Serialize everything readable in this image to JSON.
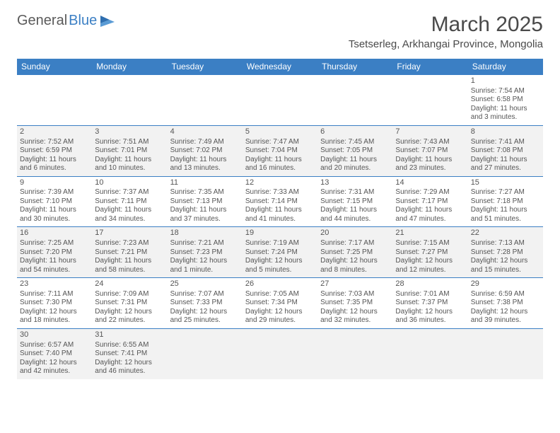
{
  "logo": {
    "text1": "General",
    "text2": "Blue"
  },
  "title": "March 2025",
  "location": "Tsetserleg, Arkhangai Province, Mongolia",
  "colors": {
    "header_bg": "#3b7fc4",
    "header_text": "#ffffff",
    "row_alt_bg": "#f2f2f2",
    "border": "#3b7fc4",
    "text": "#555555"
  },
  "day_headers": [
    "Sunday",
    "Monday",
    "Tuesday",
    "Wednesday",
    "Thursday",
    "Friday",
    "Saturday"
  ],
  "weeks": [
    [
      null,
      null,
      null,
      null,
      null,
      null,
      {
        "n": "1",
        "sunrise": "Sunrise: 7:54 AM",
        "sunset": "Sunset: 6:58 PM",
        "daylight": "Daylight: 11 hours and 3 minutes."
      }
    ],
    [
      {
        "n": "2",
        "sunrise": "Sunrise: 7:52 AM",
        "sunset": "Sunset: 6:59 PM",
        "daylight": "Daylight: 11 hours and 6 minutes."
      },
      {
        "n": "3",
        "sunrise": "Sunrise: 7:51 AM",
        "sunset": "Sunset: 7:01 PM",
        "daylight": "Daylight: 11 hours and 10 minutes."
      },
      {
        "n": "4",
        "sunrise": "Sunrise: 7:49 AM",
        "sunset": "Sunset: 7:02 PM",
        "daylight": "Daylight: 11 hours and 13 minutes."
      },
      {
        "n": "5",
        "sunrise": "Sunrise: 7:47 AM",
        "sunset": "Sunset: 7:04 PM",
        "daylight": "Daylight: 11 hours and 16 minutes."
      },
      {
        "n": "6",
        "sunrise": "Sunrise: 7:45 AM",
        "sunset": "Sunset: 7:05 PM",
        "daylight": "Daylight: 11 hours and 20 minutes."
      },
      {
        "n": "7",
        "sunrise": "Sunrise: 7:43 AM",
        "sunset": "Sunset: 7:07 PM",
        "daylight": "Daylight: 11 hours and 23 minutes."
      },
      {
        "n": "8",
        "sunrise": "Sunrise: 7:41 AM",
        "sunset": "Sunset: 7:08 PM",
        "daylight": "Daylight: 11 hours and 27 minutes."
      }
    ],
    [
      {
        "n": "9",
        "sunrise": "Sunrise: 7:39 AM",
        "sunset": "Sunset: 7:10 PM",
        "daylight": "Daylight: 11 hours and 30 minutes."
      },
      {
        "n": "10",
        "sunrise": "Sunrise: 7:37 AM",
        "sunset": "Sunset: 7:11 PM",
        "daylight": "Daylight: 11 hours and 34 minutes."
      },
      {
        "n": "11",
        "sunrise": "Sunrise: 7:35 AM",
        "sunset": "Sunset: 7:13 PM",
        "daylight": "Daylight: 11 hours and 37 minutes."
      },
      {
        "n": "12",
        "sunrise": "Sunrise: 7:33 AM",
        "sunset": "Sunset: 7:14 PM",
        "daylight": "Daylight: 11 hours and 41 minutes."
      },
      {
        "n": "13",
        "sunrise": "Sunrise: 7:31 AM",
        "sunset": "Sunset: 7:15 PM",
        "daylight": "Daylight: 11 hours and 44 minutes."
      },
      {
        "n": "14",
        "sunrise": "Sunrise: 7:29 AM",
        "sunset": "Sunset: 7:17 PM",
        "daylight": "Daylight: 11 hours and 47 minutes."
      },
      {
        "n": "15",
        "sunrise": "Sunrise: 7:27 AM",
        "sunset": "Sunset: 7:18 PM",
        "daylight": "Daylight: 11 hours and 51 minutes."
      }
    ],
    [
      {
        "n": "16",
        "sunrise": "Sunrise: 7:25 AM",
        "sunset": "Sunset: 7:20 PM",
        "daylight": "Daylight: 11 hours and 54 minutes."
      },
      {
        "n": "17",
        "sunrise": "Sunrise: 7:23 AM",
        "sunset": "Sunset: 7:21 PM",
        "daylight": "Daylight: 11 hours and 58 minutes."
      },
      {
        "n": "18",
        "sunrise": "Sunrise: 7:21 AM",
        "sunset": "Sunset: 7:23 PM",
        "daylight": "Daylight: 12 hours and 1 minute."
      },
      {
        "n": "19",
        "sunrise": "Sunrise: 7:19 AM",
        "sunset": "Sunset: 7:24 PM",
        "daylight": "Daylight: 12 hours and 5 minutes."
      },
      {
        "n": "20",
        "sunrise": "Sunrise: 7:17 AM",
        "sunset": "Sunset: 7:25 PM",
        "daylight": "Daylight: 12 hours and 8 minutes."
      },
      {
        "n": "21",
        "sunrise": "Sunrise: 7:15 AM",
        "sunset": "Sunset: 7:27 PM",
        "daylight": "Daylight: 12 hours and 12 minutes."
      },
      {
        "n": "22",
        "sunrise": "Sunrise: 7:13 AM",
        "sunset": "Sunset: 7:28 PM",
        "daylight": "Daylight: 12 hours and 15 minutes."
      }
    ],
    [
      {
        "n": "23",
        "sunrise": "Sunrise: 7:11 AM",
        "sunset": "Sunset: 7:30 PM",
        "daylight": "Daylight: 12 hours and 18 minutes."
      },
      {
        "n": "24",
        "sunrise": "Sunrise: 7:09 AM",
        "sunset": "Sunset: 7:31 PM",
        "daylight": "Daylight: 12 hours and 22 minutes."
      },
      {
        "n": "25",
        "sunrise": "Sunrise: 7:07 AM",
        "sunset": "Sunset: 7:33 PM",
        "daylight": "Daylight: 12 hours and 25 minutes."
      },
      {
        "n": "26",
        "sunrise": "Sunrise: 7:05 AM",
        "sunset": "Sunset: 7:34 PM",
        "daylight": "Daylight: 12 hours and 29 minutes."
      },
      {
        "n": "27",
        "sunrise": "Sunrise: 7:03 AM",
        "sunset": "Sunset: 7:35 PM",
        "daylight": "Daylight: 12 hours and 32 minutes."
      },
      {
        "n": "28",
        "sunrise": "Sunrise: 7:01 AM",
        "sunset": "Sunset: 7:37 PM",
        "daylight": "Daylight: 12 hours and 36 minutes."
      },
      {
        "n": "29",
        "sunrise": "Sunrise: 6:59 AM",
        "sunset": "Sunset: 7:38 PM",
        "daylight": "Daylight: 12 hours and 39 minutes."
      }
    ],
    [
      {
        "n": "30",
        "sunrise": "Sunrise: 6:57 AM",
        "sunset": "Sunset: 7:40 PM",
        "daylight": "Daylight: 12 hours and 42 minutes."
      },
      {
        "n": "31",
        "sunrise": "Sunrise: 6:55 AM",
        "sunset": "Sunset: 7:41 PM",
        "daylight": "Daylight: 12 hours and 46 minutes."
      },
      null,
      null,
      null,
      null,
      null
    ]
  ]
}
